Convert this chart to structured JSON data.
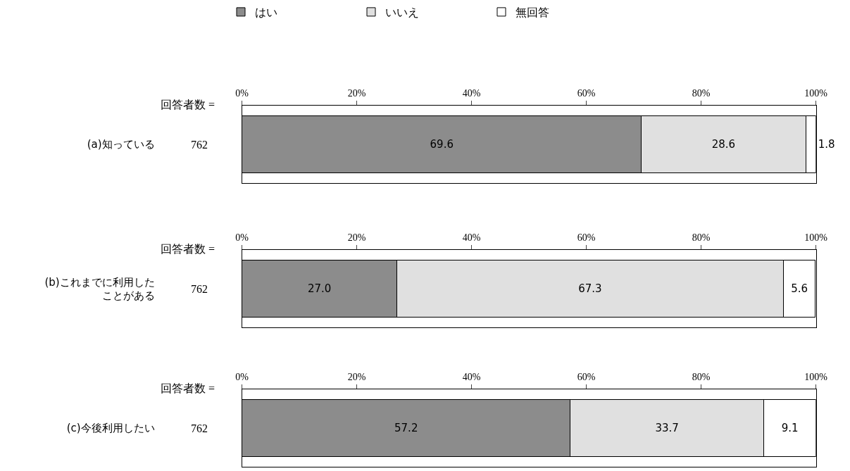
{
  "chart_data": [
    {
      "type": "bar",
      "orientation": "horizontal",
      "stacked": true,
      "categories": [
        "(a)知っている"
      ],
      "legend": "top",
      "xlim": [
        0,
        100
      ],
      "xticks": [
        {
          "value": 0,
          "label": "0%"
        },
        {
          "value": 20,
          "label": "20%"
        },
        {
          "value": 40,
          "label": "40%"
        },
        {
          "value": 60,
          "label": "60%"
        },
        {
          "value": 80,
          "label": "80%"
        },
        {
          "value": 100,
          "label": "100%"
        }
      ],
      "annotations": [
        "回答者数 =",
        "762"
      ],
      "series": [
        {
          "name": "はい",
          "color": "#8c8c8c",
          "values": [
            69.6
          ],
          "value_labels": [
            "69.6"
          ]
        },
        {
          "name": "いいえ",
          "color": "#e0e0e0",
          "values": [
            28.6
          ],
          "value_labels": [
            "28.6"
          ]
        },
        {
          "name": "無回答",
          "color": "#ffffff",
          "values": [
            1.8
          ],
          "value_labels": [
            "1.8"
          ]
        }
      ]
    },
    {
      "type": "bar",
      "orientation": "horizontal",
      "stacked": true,
      "categories": [
        "(b)これまでに利用したことがある"
      ],
      "xlim": [
        0,
        100
      ],
      "xticks": [
        {
          "value": 0,
          "label": "0%"
        },
        {
          "value": 20,
          "label": "20%"
        },
        {
          "value": 40,
          "label": "40%"
        },
        {
          "value": 60,
          "label": "60%"
        },
        {
          "value": 80,
          "label": "80%"
        },
        {
          "value": 100,
          "label": "100%"
        }
      ],
      "annotations": [
        "回答者数 =",
        "762"
      ],
      "series": [
        {
          "color": "#8c8c8c",
          "values": [
            27.0
          ],
          "value_labels": [
            "27.0"
          ]
        },
        {
          "color": "#e0e0e0",
          "values": [
            67.3
          ],
          "value_labels": [
            "67.3"
          ]
        },
        {
          "color": "#ffffff",
          "values": [
            5.6
          ],
          "value_labels": [
            "5.6"
          ]
        }
      ]
    },
    {
      "type": "bar",
      "orientation": "horizontal",
      "stacked": true,
      "categories": [
        "(c)今後利用したい"
      ],
      "xlim": [
        0,
        100
      ],
      "xticks": [
        {
          "value": 0,
          "label": "0%"
        },
        {
          "value": 20,
          "label": "20%"
        },
        {
          "value": 40,
          "label": "40%"
        },
        {
          "value": 60,
          "label": "60%"
        },
        {
          "value": 80,
          "label": "80%"
        },
        {
          "value": 100,
          "label": "100%"
        }
      ],
      "annotations": [
        "回答者数 =",
        "762"
      ],
      "series": [
        {
          "color": "#8c8c8c",
          "values": [
            57.2
          ],
          "value_labels": [
            "57.2"
          ]
        },
        {
          "color": "#e0e0e0",
          "values": [
            33.7
          ],
          "value_labels": [
            "33.7"
          ]
        },
        {
          "color": "#ffffff",
          "values": [
            9.1
          ],
          "value_labels": [
            "9.1"
          ]
        }
      ]
    }
  ]
}
